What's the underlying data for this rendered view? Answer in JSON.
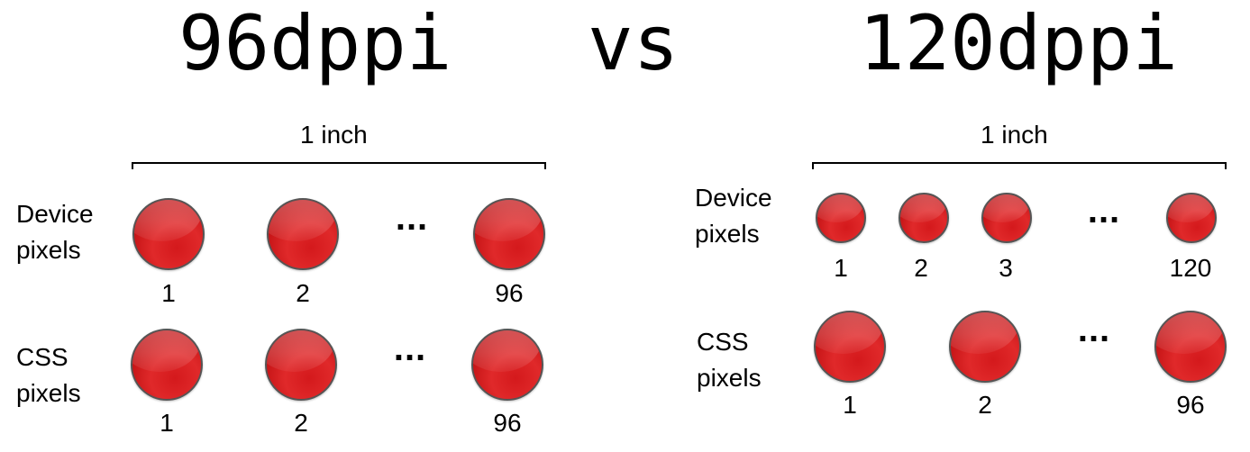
{
  "titles": {
    "left": "96dppi",
    "vs": "vs",
    "right": "120dppi"
  },
  "left": {
    "span_label": "1 inch",
    "rows": [
      {
        "label_line1": "Device",
        "label_line2": "pixels",
        "numbers": [
          "1",
          "2",
          "96"
        ],
        "ellipsis": "..."
      },
      {
        "label_line1": "CSS",
        "label_line2": "pixels",
        "numbers": [
          "1",
          "2",
          "96"
        ],
        "ellipsis": "..."
      }
    ]
  },
  "right": {
    "span_label": "1 inch",
    "rows": [
      {
        "label_line1": "Device",
        "label_line2": "pixels",
        "numbers": [
          "1",
          "2",
          "3",
          "120"
        ],
        "ellipsis": "..."
      },
      {
        "label_line1": "CSS",
        "label_line2": "pixels",
        "numbers": [
          "1",
          "2",
          "96"
        ],
        "ellipsis": "..."
      }
    ]
  },
  "colors": {
    "dot": "#d4191c",
    "dot_border": "#555555",
    "text": "#000000"
  }
}
